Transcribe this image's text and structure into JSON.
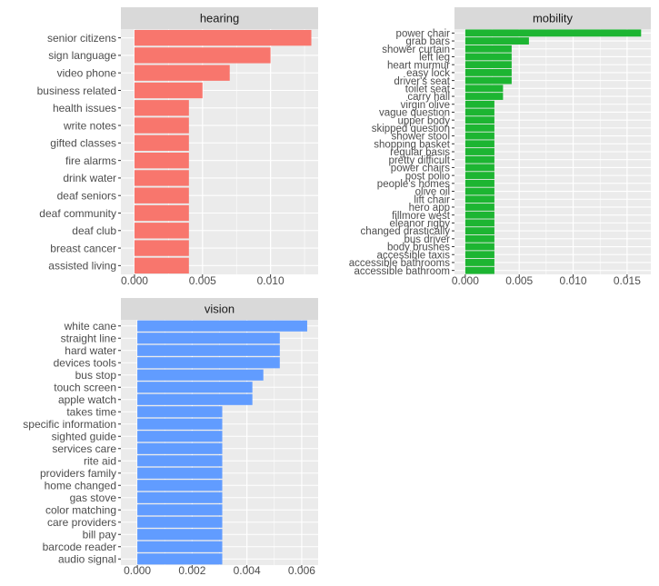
{
  "chart_data": [
    {
      "type": "bar",
      "orientation": "horizontal",
      "title": "hearing",
      "bar_color": "#F8766D",
      "categories": [
        "senior citizens",
        "sign language",
        "video phone",
        "business related",
        "health issues",
        "write notes",
        "gifted classes",
        "fire alarms",
        "drink water",
        "deaf seniors",
        "deaf community",
        "deaf club",
        "breast cancer",
        "assisted living"
      ],
      "values": [
        0.013,
        0.01,
        0.007,
        0.005,
        0.004,
        0.004,
        0.004,
        0.004,
        0.004,
        0.004,
        0.004,
        0.004,
        0.004,
        0.004
      ],
      "xlim": [
        -0.001,
        0.0135
      ],
      "ticks": [
        0.0,
        0.005,
        0.01
      ],
      "tick_labels": [
        "0.000",
        "0.005",
        "0.010"
      ],
      "xlabel": "",
      "ylabel": "",
      "grid": true
    },
    {
      "type": "bar",
      "orientation": "horizontal",
      "title": "mobility",
      "bar_color": "#1DB532",
      "categories": [
        "power chair",
        "grab bars",
        "shower curtain",
        "left leg",
        "heart murmur",
        "easy lock",
        "driver's seat",
        "toilet seat",
        "carry hall",
        "virgin olive",
        "vague question",
        "upper body",
        "skipped question",
        "shower stool",
        "shopping basket",
        "regular basis",
        "pretty difficult",
        "power chairs",
        "post polio",
        "people's homes",
        "olive oil",
        "lift chair",
        "hero app",
        "fillmore west",
        "eleanor rigby",
        "changed drastically",
        "bus driver",
        "body brushes",
        "accessible taxis",
        "accessible bathrooms",
        "accessible bathroom"
      ],
      "values": [
        0.0163,
        0.0059,
        0.0043,
        0.0043,
        0.0043,
        0.0043,
        0.0043,
        0.0035,
        0.0035,
        0.0027,
        0.0027,
        0.0027,
        0.0027,
        0.0027,
        0.0027,
        0.0027,
        0.0027,
        0.0027,
        0.0027,
        0.0027,
        0.0027,
        0.0027,
        0.0027,
        0.0027,
        0.0027,
        0.0027,
        0.0027,
        0.0027,
        0.0027,
        0.0027,
        0.0027
      ],
      "xlim": [
        -0.001,
        0.0172
      ],
      "ticks": [
        0.0,
        0.005,
        0.01,
        0.015
      ],
      "tick_labels": [
        "0.000",
        "0.005",
        "0.010",
        "0.015"
      ],
      "xlabel": "",
      "ylabel": "",
      "grid": true
    },
    {
      "type": "bar",
      "orientation": "horizontal",
      "title": "vision",
      "bar_color": "#619CFF",
      "categories": [
        "white cane",
        "straight line",
        "hard water",
        "devices tools",
        "bus stop",
        "touch screen",
        "apple watch",
        "takes time",
        "specific information",
        "sighted guide",
        "services care",
        "rite aid",
        "providers family",
        "home changed",
        "gas stove",
        "color matching",
        "care providers",
        "bill pay",
        "barcode reader",
        "audio signal"
      ],
      "values": [
        0.0062,
        0.0052,
        0.0052,
        0.0052,
        0.0046,
        0.0042,
        0.0042,
        0.0031,
        0.0031,
        0.0031,
        0.0031,
        0.0031,
        0.0031,
        0.0031,
        0.0031,
        0.0031,
        0.0031,
        0.0031,
        0.0031,
        0.0031
      ],
      "xlim": [
        -0.0006,
        0.0066
      ],
      "ticks": [
        0.0,
        0.002,
        0.004,
        0.006
      ],
      "tick_labels": [
        "0.000",
        "0.002",
        "0.004",
        "0.006"
      ],
      "xlabel": "",
      "ylabel": "",
      "grid": true
    }
  ]
}
